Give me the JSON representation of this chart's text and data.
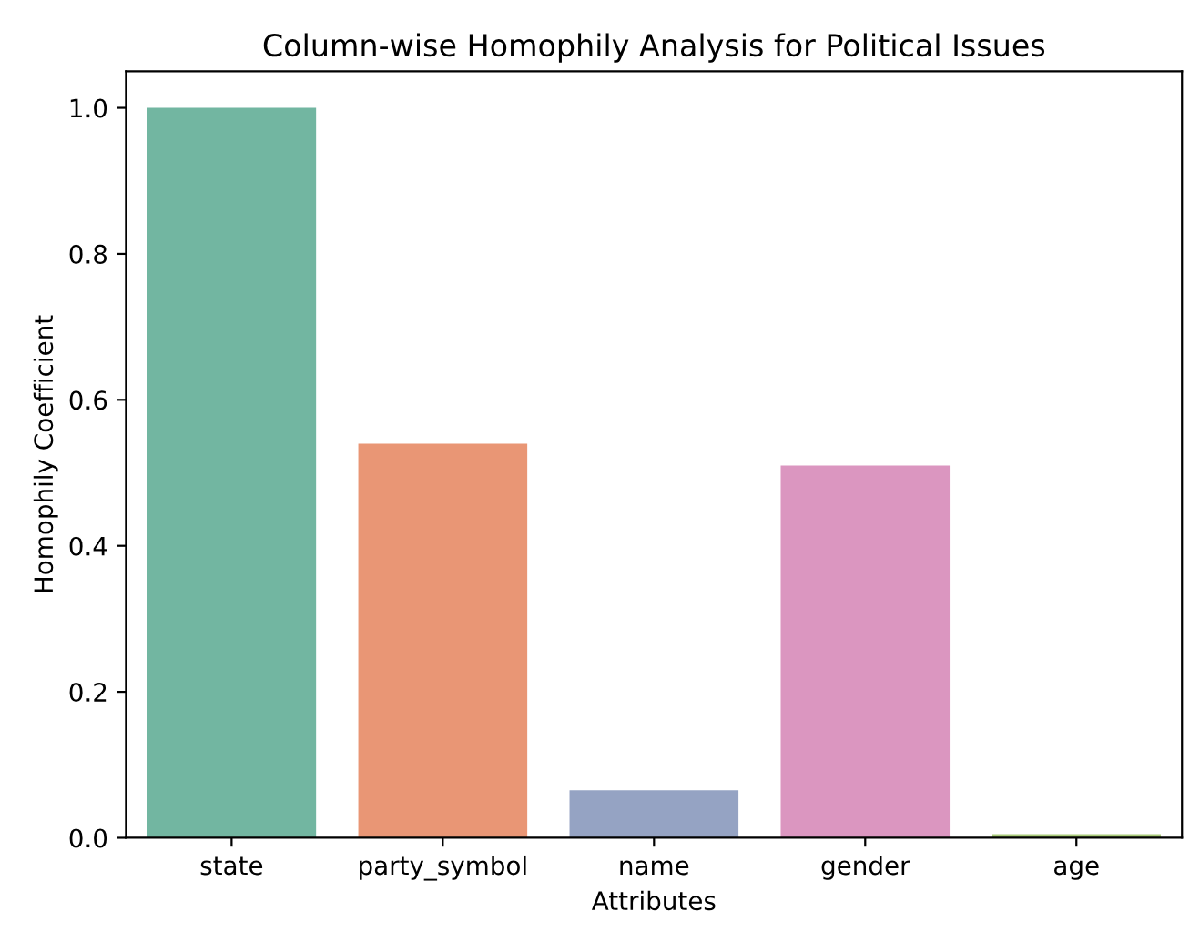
{
  "chart_data": {
    "type": "bar",
    "title": "Column-wise Homophily Analysis for Political Issues",
    "xlabel": "Attributes",
    "ylabel": "Homophily Coefficient",
    "categories": [
      "state",
      "party_symbol",
      "name",
      "gender",
      "age"
    ],
    "values": [
      1.0,
      0.54,
      0.065,
      0.51,
      0.005
    ],
    "colors": [
      "#72b6a1",
      "#e99675",
      "#95a3c3",
      "#db96c0",
      "#a9cb7a"
    ],
    "ylim": [
      0,
      1.05
    ],
    "yticks": [
      {
        "value": 0,
        "label": "0.0"
      },
      0.2,
      0.4,
      0.6,
      0.8,
      {
        "value": 1,
        "label": "1.0"
      }
    ],
    "grid": false,
    "legend": false
  }
}
